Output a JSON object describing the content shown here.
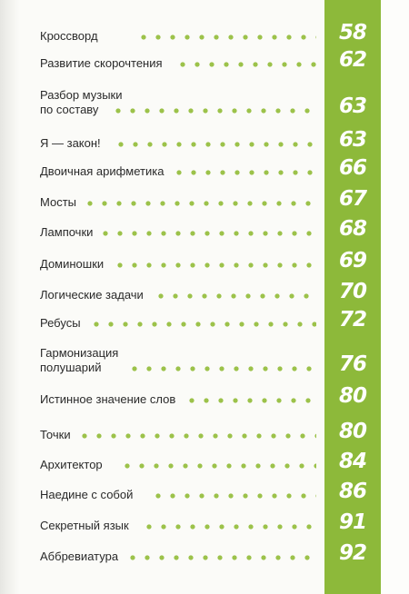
{
  "toc": [
    {
      "lines": [
        "Кроссворд"
      ],
      "page": "58"
    },
    {
      "lines": [
        "Развитие скорочтения"
      ],
      "page": "62"
    },
    {
      "lines": [
        "Разбор музыки",
        "по составу"
      ],
      "page": "63"
    },
    {
      "lines": [
        "Я — закон!"
      ],
      "page": "63"
    },
    {
      "lines": [
        "Двоичная арифметика"
      ],
      "page": "66"
    },
    {
      "lines": [
        "Мосты"
      ],
      "page": "67"
    },
    {
      "lines": [
        "Лампочки"
      ],
      "page": "68"
    },
    {
      "lines": [
        "Доминошки"
      ],
      "page": "69"
    },
    {
      "lines": [
        "Логические задачи"
      ],
      "page": "70"
    },
    {
      "lines": [
        "Ребусы"
      ],
      "page": "72"
    },
    {
      "lines": [
        "Гармонизация",
        "полушарий"
      ],
      "page": "76"
    },
    {
      "lines": [
        "Истинное значение слов"
      ],
      "page": "80"
    },
    {
      "lines": [
        "Точки"
      ],
      "page": "80"
    },
    {
      "lines": [
        "Архитектор"
      ],
      "page": "84"
    },
    {
      "lines": [
        "Наедине с собой"
      ],
      "page": "86"
    },
    {
      "lines": [
        "Секретный язык"
      ],
      "page": "91"
    },
    {
      "lines": [
        "Аббревиатура"
      ],
      "page": "92"
    }
  ],
  "colors": {
    "accent": "#8db93a",
    "dots": "#9cc24a",
    "text": "#2a2a2a"
  }
}
